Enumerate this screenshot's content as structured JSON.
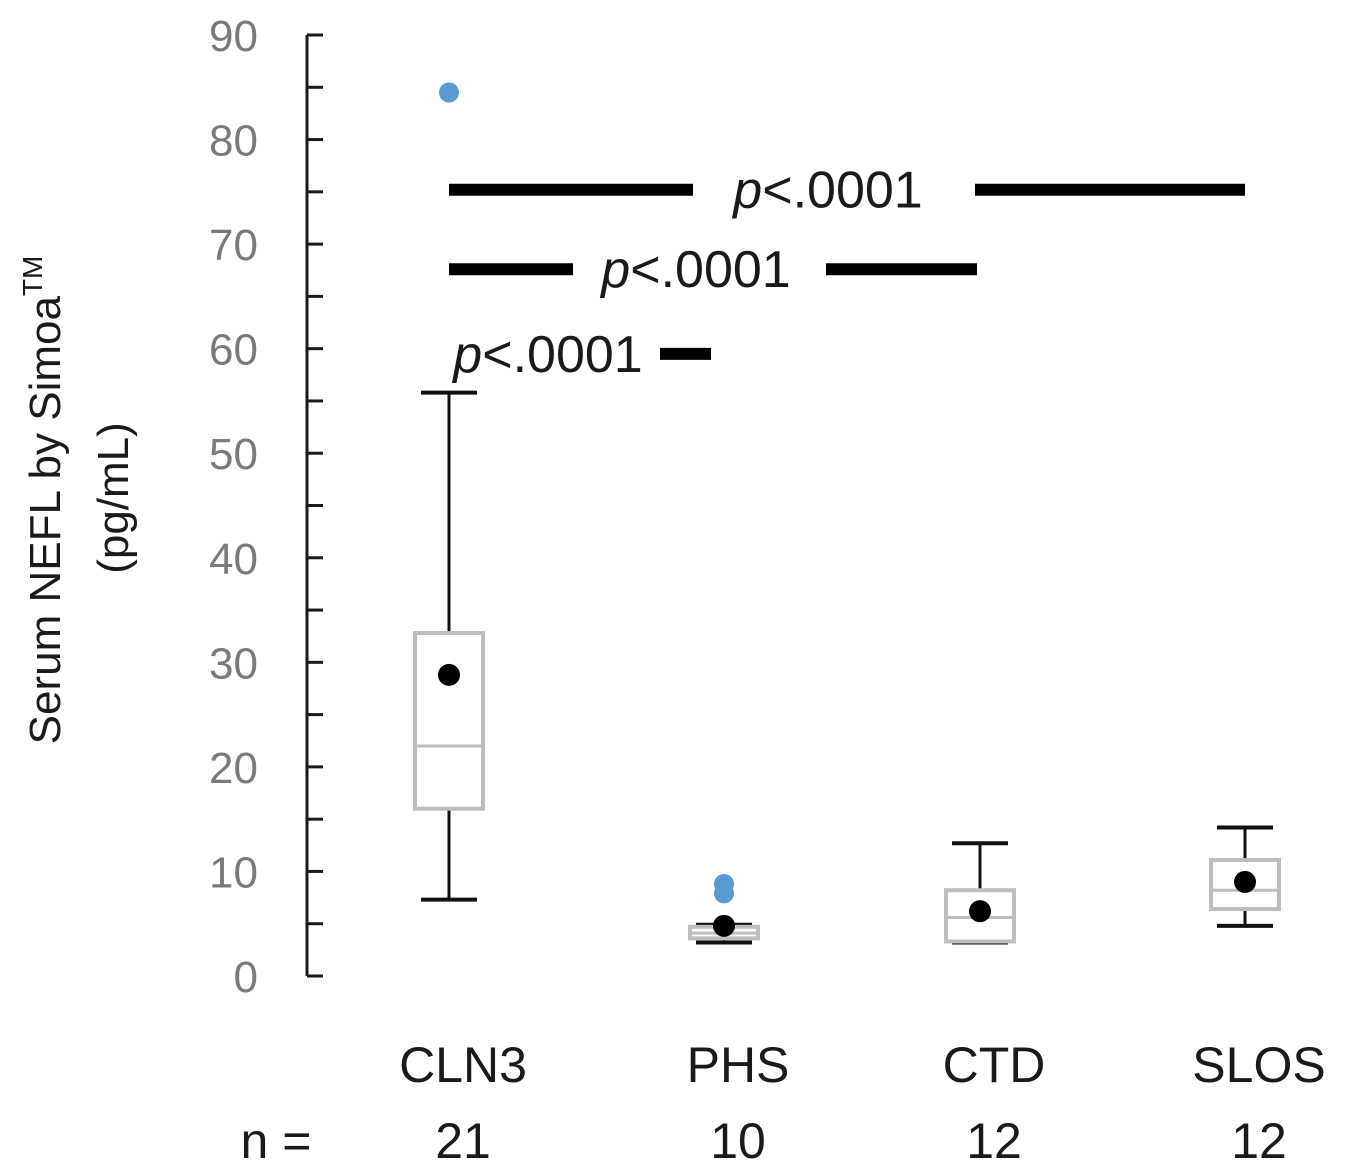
{
  "chart_data": {
    "type": "box",
    "ylabel_line1": "Serum NEFL by Simoa",
    "ylabel_sup": "TM",
    "ylabel_line2": "(pg/mL)",
    "ylim": [
      0,
      90
    ],
    "yticks": [
      0,
      10,
      20,
      30,
      40,
      50,
      60,
      70,
      80,
      90
    ],
    "n_prefix": "n =",
    "categories": [
      "CLN3",
      "PHS",
      "CTD",
      "SLOS"
    ],
    "n": [
      "21",
      "10",
      "12",
      "12"
    ],
    "boxes": [
      {
        "category": "CLN3",
        "whisker_low": 7.3,
        "q1": 16,
        "median": 22,
        "q3": 32.8,
        "whisker_high": 55.8,
        "mean": 28.8,
        "outliers": [
          84.5
        ]
      },
      {
        "category": "PHS",
        "whisker_low": 3.2,
        "q1": 3.6,
        "median": 4.1,
        "q3": 4.7,
        "whisker_high": 4.9,
        "mean": 4.8,
        "outliers": [
          7.9,
          8.8
        ]
      },
      {
        "category": "CTD",
        "whisker_low": 3.2,
        "q1": 3.3,
        "median": 5.6,
        "q3": 8.2,
        "whisker_high": 12.7,
        "mean": 6.2,
        "outliers": []
      },
      {
        "category": "SLOS",
        "whisker_low": 4.8,
        "q1": 6.4,
        "median": 8.2,
        "q3": 11.1,
        "whisker_high": 14.2,
        "mean": 9.0,
        "outliers": []
      }
    ],
    "significance": [
      {
        "from": "CLN3",
        "to": "SLOS",
        "y": 75.2,
        "p_italic": "p",
        "p_text": "<.0001"
      },
      {
        "from": "CLN3",
        "to": "CTD",
        "y": 67.6,
        "p_italic": "p",
        "p_text": "<.0001"
      },
      {
        "from": "CLN3",
        "to": "PHS",
        "y": 59.5,
        "p_italic": "p",
        "p_text": "<.0001"
      }
    ],
    "colors": {
      "box": "#bdbdbd",
      "whisker": "#111111",
      "mean": "#000000",
      "outlier": "#5b9bd5",
      "axis": "#1a1a1a",
      "tick_label": "#7a7a7a"
    }
  }
}
